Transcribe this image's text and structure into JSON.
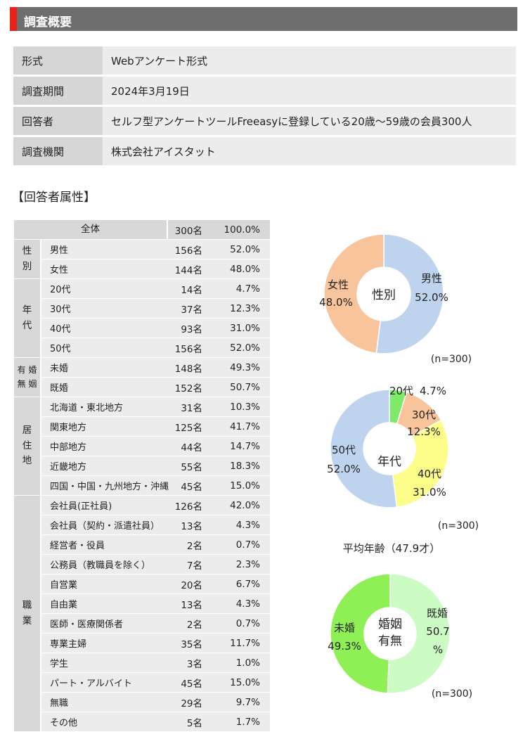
{
  "header": {
    "title": "調査概要"
  },
  "overview": [
    {
      "label": "形式",
      "value": "Webアンケート形式"
    },
    {
      "label": "調査期間",
      "value": "2024年3月19日"
    },
    {
      "label": "回答者",
      "value": "セルフ型アンケートツールFreeasyに登録している20歳～59歳の会員300人"
    },
    {
      "label": "調査機関",
      "value": "株式会社アイスタット"
    }
  ],
  "attr_title": "【回答者属性】",
  "attributes": {
    "total": {
      "label": "全体",
      "count": "300名",
      "pct": "100.0%"
    },
    "groups": [
      {
        "name": "性別",
        "rows": [
          {
            "label": "男性",
            "count": "156名",
            "pct": "52.0%"
          },
          {
            "label": "女性",
            "count": "144名",
            "pct": "48.0%"
          }
        ]
      },
      {
        "name": "年代",
        "rows": [
          {
            "label": "20代",
            "count": "14名",
            "pct": "4.7%"
          },
          {
            "label": "30代",
            "count": "37名",
            "pct": "12.3%"
          },
          {
            "label": "40代",
            "count": "93名",
            "pct": "31.0%"
          },
          {
            "label": "50代",
            "count": "156名",
            "pct": "52.0%"
          }
        ]
      },
      {
        "name": "有婚無姻",
        "rows": [
          {
            "label": "未婚",
            "count": "148名",
            "pct": "49.3%"
          },
          {
            "label": "既婚",
            "count": "152名",
            "pct": "50.7%"
          }
        ]
      },
      {
        "name": "居住地",
        "rows": [
          {
            "label": "北海道・東北地方",
            "count": "31名",
            "pct": "10.3%"
          },
          {
            "label": "関東地方",
            "count": "125名",
            "pct": "41.7%"
          },
          {
            "label": "中部地方",
            "count": "44名",
            "pct": "14.7%"
          },
          {
            "label": "近畿地方",
            "count": "55名",
            "pct": "18.3%"
          },
          {
            "label": "四国・中国・九州地方・沖縄",
            "count": "45名",
            "pct": "15.0%"
          }
        ]
      },
      {
        "name": "職業",
        "rows": [
          {
            "label": "会社員(正社員)",
            "count": "126名",
            "pct": "42.0%"
          },
          {
            "label": "会社員（契約・派遣社員）",
            "count": "13名",
            "pct": "4.3%"
          },
          {
            "label": "経営者・役員",
            "count": "2名",
            "pct": "0.7%"
          },
          {
            "label": "公務員（教職員を除く）",
            "count": "7名",
            "pct": "2.3%"
          },
          {
            "label": "自営業",
            "count": "20名",
            "pct": "6.7%"
          },
          {
            "label": "自由業",
            "count": "13名",
            "pct": "4.3%"
          },
          {
            "label": "医師・医療関係者",
            "count": "2名",
            "pct": "0.7%"
          },
          {
            "label": "専業主婦",
            "count": "35名",
            "pct": "11.7%"
          },
          {
            "label": "学生",
            "count": "3名",
            "pct": "1.0%"
          },
          {
            "label": "パート・アルバイト",
            "count": "45名",
            "pct": "15.0%"
          },
          {
            "label": "無職",
            "count": "29名",
            "pct": "9.7%"
          },
          {
            "label": "その他",
            "count": "5名",
            "pct": "1.7%"
          }
        ]
      }
    ]
  },
  "chart_data": [
    {
      "type": "pie",
      "center_label": "性別",
      "n_label": "(n=300)",
      "categories": [
        "男性",
        "女性"
      ],
      "values": [
        52.0,
        48.0
      ],
      "value_labels": [
        "52.0%",
        "48.0%"
      ],
      "colors": [
        "#bdd3ee",
        "#f8c49c"
      ]
    },
    {
      "type": "pie",
      "center_label": "年代",
      "n_label": "(n=300)",
      "footnote": "平均年齢（47.9才）",
      "categories": [
        "20代",
        "30代",
        "40代",
        "50代"
      ],
      "values": [
        4.7,
        12.3,
        31.0,
        52.0
      ],
      "value_labels": [
        "4.7%",
        "12.3%",
        "31.0%",
        "52.0%"
      ],
      "colors": [
        "#7dea6a",
        "#f8c49c",
        "#fdfd8a",
        "#bdd3ee"
      ]
    },
    {
      "type": "pie",
      "center_label": "婚姻有無",
      "n_label": "(n=300)",
      "categories": [
        "既婚",
        "未婚"
      ],
      "values": [
        50.7,
        49.3
      ],
      "value_labels": [
        "50.7%",
        "49.3%"
      ],
      "colors": [
        "#ccfcc4",
        "#8ef054"
      ]
    }
  ]
}
